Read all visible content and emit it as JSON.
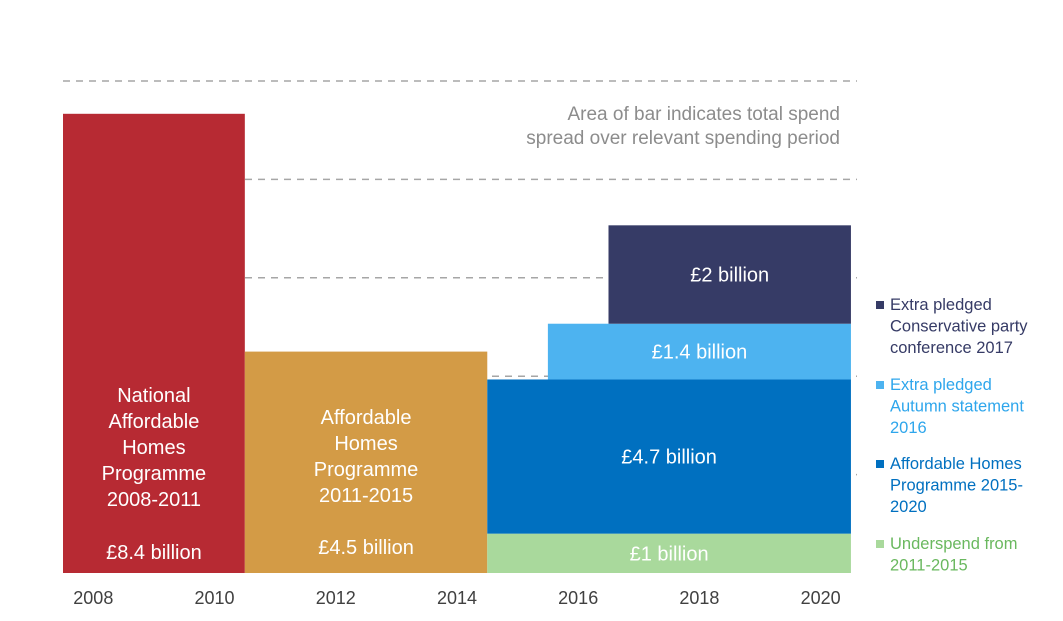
{
  "chart_data": {
    "type": "bar",
    "note": [
      "Area of bar indicates total spend",
      "spread over relevant spending period"
    ],
    "x_ticks": [
      "2008",
      "2010",
      "2012",
      "2014",
      "2016",
      "2018",
      "2020"
    ],
    "xlim": [
      2007.5,
      2020.6
    ],
    "ylim": [
      0,
      3.2
    ],
    "grid": true,
    "gridlines": [
      0.6,
      1.2,
      1.8,
      2.4,
      3.0
    ],
    "legend_position": "right",
    "programmes": [
      {
        "x_start": 2007.5,
        "x_end": 2010.5,
        "bottom": 0,
        "top": 2.8,
        "labels": [
          "National",
          "Affordable",
          "Homes",
          "Programme",
          "2008-2011"
        ],
        "value_label": "£8.4 billion",
        "color": "#b72a33"
      },
      {
        "x_start": 2010.5,
        "x_end": 2014.5,
        "bottom": 0,
        "top": 1.35,
        "labels": [
          "Affordable",
          "Homes",
          "Programme",
          "2011-2015"
        ],
        "value_label": "£4.5 billion",
        "color": "#d39b46"
      }
    ],
    "series": [
      {
        "name": "Underspend from 2011-2015",
        "legend_lines": [
          "Underspend from",
          "2011-2015"
        ],
        "color": "#a9d99c",
        "legend_text_color": "#6ab85f",
        "blocks": [
          {
            "x_start": 2014.5,
            "x_end": 2020.5,
            "bottom": 0,
            "top": 0.24,
            "label": "£1 billion"
          }
        ]
      },
      {
        "name": "Affordable Homes Programme 2015-2020",
        "legend_lines": [
          "Affordable Homes",
          "Programme 2015-",
          "2020"
        ],
        "color": "#0070c0",
        "legend_text_color": "#0070c0",
        "blocks": [
          {
            "x_start": 2014.5,
            "x_end": 2020.5,
            "bottom": 0.24,
            "top": 1.18,
            "label": "£4.7 billion"
          }
        ]
      },
      {
        "name": "Extra pledged Autumn statement 2016",
        "legend_lines": [
          "Extra pledged",
          "Autumn statement",
          "2016"
        ],
        "color": "#4db3f0",
        "legend_text_color": "#2ea6ec",
        "blocks": [
          {
            "x_start": 2015.5,
            "x_end": 2020.5,
            "bottom": 1.18,
            "top": 1.52,
            "label": "£1.4 billion"
          }
        ]
      },
      {
        "name": "Extra pledged Conservative party conference 2017",
        "legend_lines": [
          "Extra pledged",
          "Conservative party",
          "conference 2017"
        ],
        "color": "#363b66",
        "legend_text_color": "#363b66",
        "blocks": [
          {
            "x_start": 2016.5,
            "x_end": 2020.5,
            "bottom": 1.52,
            "top": 2.12,
            "label": "£2 billion"
          }
        ]
      }
    ]
  }
}
